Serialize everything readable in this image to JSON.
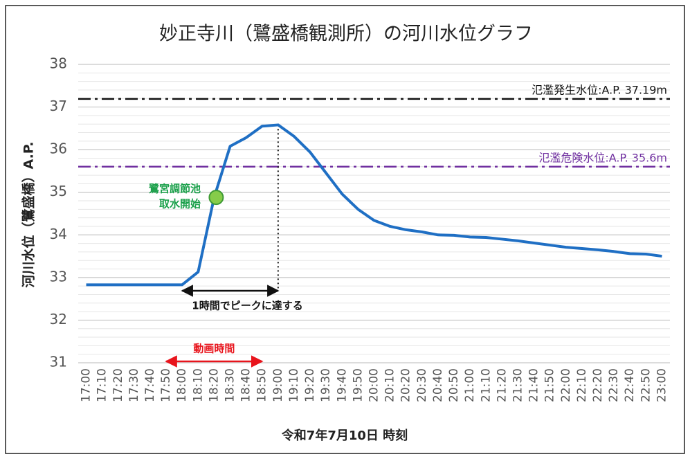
{
  "chart_data": {
    "type": "line",
    "title": "妙正寺川（鷺盛橋観測所）の河川水位グラフ",
    "x_label": "令和7年7月10日 時刻",
    "y_label": "河川水位（鷺盛橋）A.P.",
    "categories": [
      "17:00",
      "17:10",
      "17:20",
      "17:30",
      "17:40",
      "17:50",
      "18:00",
      "18:10",
      "18:20",
      "18:30",
      "18:40",
      "18:50",
      "19:00",
      "19:10",
      "19:20",
      "19:30",
      "19:40",
      "19:50",
      "20:00",
      "20:10",
      "20:20",
      "20:30",
      "20:40",
      "20:50",
      "21:00",
      "21:10",
      "21:20",
      "21:30",
      "21:40",
      "21:50",
      "22:00",
      "22:10",
      "22:20",
      "22:30",
      "22:40",
      "22:50",
      "23:00"
    ],
    "values": [
      32.83,
      32.83,
      32.83,
      32.83,
      32.83,
      32.83,
      32.83,
      33.13,
      34.88,
      36.08,
      36.28,
      36.55,
      36.58,
      36.31,
      35.94,
      35.45,
      34.96,
      34.6,
      34.34,
      34.2,
      34.12,
      34.07,
      34.0,
      33.99,
      33.95,
      33.94,
      33.9,
      33.86,
      33.81,
      33.76,
      33.71,
      33.68,
      33.65,
      33.61,
      33.56,
      33.55,
      33.5
    ],
    "color": "#1f6fc4",
    "ylim": [
      31,
      38
    ],
    "yticks": [
      31,
      32,
      33,
      34,
      35,
      36,
      37,
      38
    ],
    "grid": true,
    "minor_grid_step": 0.2,
    "reference_lines": [
      {
        "value": 37.19,
        "label": "氾濫発生水位:A.P. 37.19m",
        "color": "#111111"
      },
      {
        "value": 35.6,
        "label": "氾濫危険水位:A.P. 35.6m",
        "color": "#7030a0"
      }
    ],
    "point_annotation": {
      "x": "18:20",
      "label": [
        "鷺宮調節池",
        "取水開始"
      ],
      "color": "#1aa04a"
    },
    "peak_line": {
      "x": "19:00"
    },
    "span_annotations": [
      {
        "start": "18:00",
        "end": "19:00",
        "label": "1時間でピークに達する",
        "color": "#111111"
      },
      {
        "start": "17:50",
        "end": "18:50",
        "label": "動画時間",
        "color": "#e8141c"
      }
    ]
  }
}
